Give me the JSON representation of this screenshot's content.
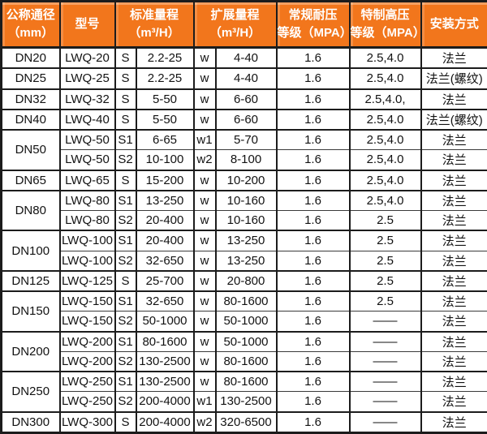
{
  "colors": {
    "header_bg": "#f2761c",
    "header_text": "#ffffff",
    "grid_border": "#1c1c1c",
    "row_divider": "#3a3a3a",
    "body_text": "#121212",
    "body_bg": "#ffffff"
  },
  "chart_data": {
    "type": "table",
    "header": {
      "dn": [
        "公称通径",
        "（mm）"
      ],
      "model": [
        "型号"
      ],
      "std": [
        "标准量程",
        "（m³/H）"
      ],
      "ext": [
        "扩展量程",
        "（m³/H）"
      ],
      "pressure": [
        "常规耐压",
        "等级（MPA）"
      ],
      "high_pressure": [
        "特制高压",
        "等级（MPA）"
      ],
      "install": [
        "安装方式"
      ]
    },
    "rows": [
      {
        "dn": "DN20",
        "dn_span": 1,
        "model": "LWQ-20",
        "std_code": "S",
        "std_range": "2.2-25",
        "ext_code": "w",
        "ext_range": "4-40",
        "pressure": "1.6",
        "high_pressure": "2.5,4.0",
        "install": "法兰"
      },
      {
        "dn": "DN25",
        "dn_span": 1,
        "model": "LWQ-25",
        "std_code": "S",
        "std_range": "2.2-25",
        "ext_code": "w",
        "ext_range": "4-40",
        "pressure": "1.6",
        "high_pressure": "2.5,4.0",
        "install": "法兰(螺纹)"
      },
      {
        "dn": "DN32",
        "dn_span": 1,
        "model": "LWQ-32",
        "std_code": "S",
        "std_range": "5-50",
        "ext_code": "w",
        "ext_range": "6-60",
        "pressure": "1.6",
        "high_pressure": "2.5,4.0,",
        "install": "法兰"
      },
      {
        "dn": "DN40",
        "dn_span": 1,
        "model": "LWQ-40",
        "std_code": "S",
        "std_range": "5-50",
        "ext_code": "w",
        "ext_range": "6-60",
        "pressure": "1.6",
        "high_pressure": "2.5,4.0",
        "install": "法兰(螺纹)"
      },
      {
        "dn": "DN50",
        "dn_span": 2,
        "model": "LWQ-50",
        "std_code": "S1",
        "std_range": "6-65",
        "ext_code": "w1",
        "ext_range": "5-70",
        "pressure": "1.6",
        "high_pressure": "2.5,4.0",
        "install": "法兰"
      },
      {
        "model": "LWQ-50",
        "std_code": "S2",
        "std_range": "10-100",
        "ext_code": "w2",
        "ext_range": "8-100",
        "pressure": "1.6",
        "high_pressure": "2.5,4.0",
        "install": "法兰"
      },
      {
        "dn": "DN65",
        "dn_span": 1,
        "model": "LWQ-65",
        "std_code": "S",
        "std_range": "15-200",
        "ext_code": "w",
        "ext_range": "10-200",
        "pressure": "1.6",
        "high_pressure": "2.5,4.0",
        "install": "法兰"
      },
      {
        "dn": "DN80",
        "dn_span": 2,
        "model": "LWQ-80",
        "std_code": "S1",
        "std_range": "13-250",
        "ext_code": "w",
        "ext_range": "10-160",
        "pressure": "1.6",
        "high_pressure": "2.5,4.0",
        "install": "法兰"
      },
      {
        "model": "LWQ-80",
        "std_code": "S2",
        "std_range": "20-400",
        "ext_code": "w",
        "ext_range": "10-160",
        "pressure": "1.6",
        "high_pressure": "2.5",
        "install": "法兰"
      },
      {
        "dn": "DN100",
        "dn_span": 2,
        "model": "LWQ-100",
        "std_code": "S1",
        "std_range": "20-400",
        "ext_code": "w",
        "ext_range": "13-250",
        "pressure": "1.6",
        "high_pressure": "2.5",
        "install": "法兰"
      },
      {
        "model": "LWQ-100",
        "std_code": "S2",
        "std_range": "32-650",
        "ext_code": "w",
        "ext_range": "13-250",
        "pressure": "1.6",
        "high_pressure": "2.5",
        "install": "法兰"
      },
      {
        "dn": "DN125",
        "dn_span": 1,
        "model": "LWQ-125",
        "std_code": "S",
        "std_range": "25-700",
        "ext_code": "w",
        "ext_range": "20-800",
        "pressure": "1.6",
        "high_pressure": "2.5",
        "install": "法兰"
      },
      {
        "dn": "DN150",
        "dn_span": 2,
        "model": "LWQ-150",
        "std_code": "S1",
        "std_range": "32-650",
        "ext_code": "w",
        "ext_range": "80-1600",
        "pressure": "1.6",
        "high_pressure": "2.5",
        "install": "法兰"
      },
      {
        "model": "LWQ-150",
        "std_code": "S2",
        "std_range": "50-1000",
        "ext_code": "w",
        "ext_range": "50-1000",
        "pressure": "1.6",
        "high_pressure": "——",
        "install": "法兰"
      },
      {
        "dn": "DN200",
        "dn_span": 2,
        "model": "LWQ-200",
        "std_code": "S1",
        "std_range": "80-1600",
        "ext_code": "w",
        "ext_range": "50-1000",
        "pressure": "1.6",
        "high_pressure": "——",
        "install": "法兰"
      },
      {
        "model": "LWQ-200",
        "std_code": "S2",
        "std_range": "130-2500",
        "ext_code": "w",
        "ext_range": "80-1600",
        "pressure": "1.6",
        "high_pressure": "——",
        "install": "法兰"
      },
      {
        "dn": "DN250",
        "dn_span": 2,
        "model": "LWQ-250",
        "std_code": "S1",
        "std_range": "130-2500",
        "ext_code": "w",
        "ext_range": "80-1600",
        "pressure": "1.6",
        "high_pressure": "——",
        "install": "法兰"
      },
      {
        "model": "LWQ-250",
        "std_code": "S2",
        "std_range": "200-4000",
        "ext_code": "w1",
        "ext_range": "130-2500",
        "pressure": "1.6",
        "high_pressure": "——",
        "install": "法兰"
      },
      {
        "dn": "DN300",
        "dn_span": 1,
        "model": "LWQ-300",
        "std_code": "S",
        "std_range": "200-4000",
        "ext_code": "w2",
        "ext_range": "320-6500",
        "pressure": "1.6",
        "high_pressure": "——",
        "install": "法兰"
      }
    ]
  }
}
